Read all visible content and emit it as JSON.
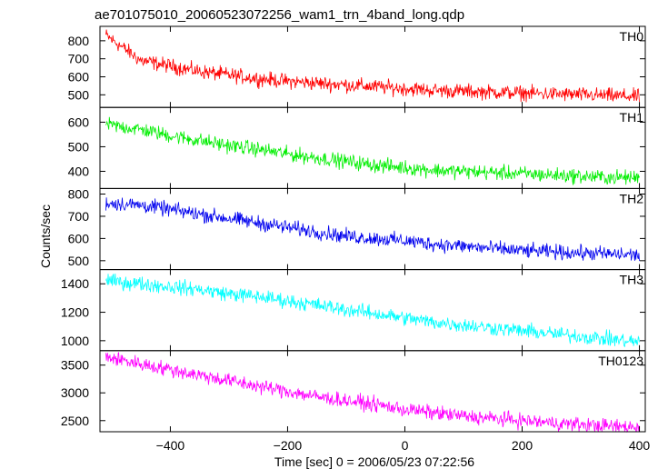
{
  "title": "ae701075010_20060523072256_wam1_trn_4band_long.qdp",
  "ylabel": "Counts/sec",
  "xlabel": "Time [sec] 0 = 2006/05/23 07:22:56",
  "chart_data": {
    "type": "line",
    "title": "ae701075010_20060523072256_wam1_trn_4band_long.qdp",
    "xlabel": "Time [sec] 0 = 2006/05/23 07:22:56",
    "ylabel": "Counts/sec",
    "xlim": [
      -520,
      410
    ],
    "xticks": [
      -400,
      -200,
      0,
      200,
      400
    ],
    "x_tick_labels": [
      "−400",
      "−200",
      "0",
      "200",
      "400"
    ],
    "grid": false,
    "series": [
      {
        "name": "TH0",
        "color": "#ff0000",
        "ylim": [
          430,
          880
        ],
        "yticks": [
          500,
          600,
          700,
          800
        ],
        "x": [
          -510,
          -480,
          -450,
          -400,
          -350,
          -300,
          -250,
          -200,
          -150,
          -100,
          -50,
          0,
          50,
          100,
          150,
          200,
          250,
          300,
          350,
          400
        ],
        "values": [
          830,
          760,
          690,
          660,
          630,
          610,
          590,
          575,
          565,
          555,
          545,
          535,
          525,
          520,
          515,
          510,
          505,
          500,
          495,
          490
        ]
      },
      {
        "name": "TH1",
        "color": "#00ee00",
        "ylim": [
          330,
          660
        ],
        "yticks": [
          400,
          500,
          600
        ],
        "x": [
          -510,
          -450,
          -400,
          -350,
          -300,
          -250,
          -200,
          -150,
          -100,
          -50,
          0,
          50,
          100,
          150,
          200,
          250,
          300,
          350,
          400
        ],
        "values": [
          590,
          570,
          545,
          525,
          505,
          490,
          470,
          455,
          440,
          425,
          415,
          405,
          400,
          395,
          390,
          385,
          380,
          375,
          375
        ]
      },
      {
        "name": "TH2",
        "color": "#0000ee",
        "ylim": [
          460,
          825
        ],
        "yticks": [
          500,
          600,
          700,
          800
        ],
        "x": [
          -510,
          -450,
          -400,
          -350,
          -300,
          -250,
          -200,
          -150,
          -100,
          -50,
          0,
          50,
          100,
          150,
          200,
          250,
          300,
          350,
          400
        ],
        "values": [
          760,
          750,
          730,
          710,
          690,
          670,
          650,
          630,
          610,
          600,
          590,
          575,
          565,
          555,
          545,
          540,
          535,
          530,
          525
        ]
      },
      {
        "name": "TH3",
        "color": "#00ffff",
        "ylim": [
          930,
          1500
        ],
        "yticks": [
          1000,
          1200,
          1400
        ],
        "x": [
          -510,
          -450,
          -400,
          -350,
          -300,
          -250,
          -200,
          -150,
          -100,
          -50,
          0,
          50,
          100,
          150,
          200,
          250,
          300,
          350,
          400
        ],
        "values": [
          1420,
          1400,
          1380,
          1360,
          1330,
          1310,
          1280,
          1250,
          1220,
          1190,
          1160,
          1130,
          1110,
          1090,
          1070,
          1050,
          1030,
          1010,
          990
        ]
      },
      {
        "name": "TH0123",
        "color": "#ff00ff",
        "ylim": [
          2300,
          3760
        ],
        "yticks": [
          2500,
          3000,
          3500
        ],
        "x": [
          -510,
          -450,
          -400,
          -350,
          -300,
          -250,
          -200,
          -150,
          -100,
          -50,
          0,
          50,
          100,
          150,
          200,
          250,
          300,
          350,
          400
        ],
        "values": [
          3650,
          3520,
          3420,
          3320,
          3220,
          3120,
          3030,
          2930,
          2860,
          2790,
          2700,
          2640,
          2580,
          2540,
          2500,
          2460,
          2430,
          2400,
          2380
        ]
      }
    ]
  }
}
